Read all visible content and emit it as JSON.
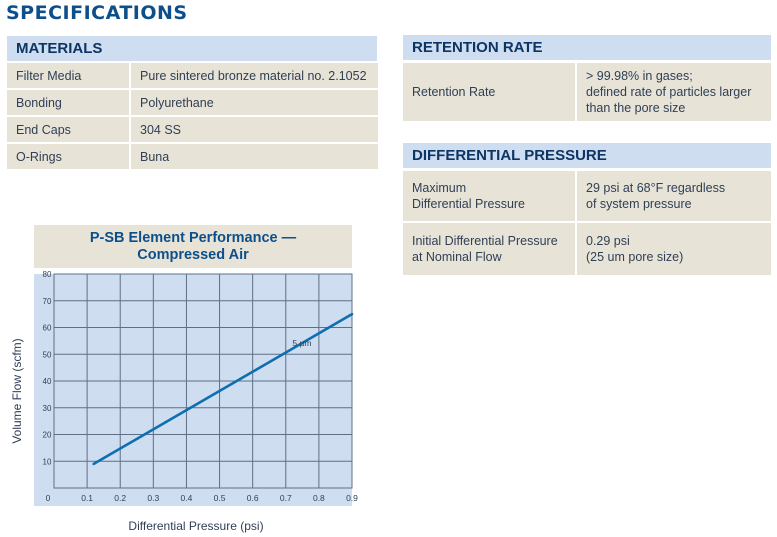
{
  "page_title": "SPECIFICATIONS",
  "materials": {
    "header": "MATERIALS",
    "rows": [
      {
        "label": "Filter Media",
        "value": "Pure sintered bronze material no. 2.1052"
      },
      {
        "label": "Bonding",
        "value": "Polyurethane"
      },
      {
        "label": "End Caps",
        "value": "304 SS"
      },
      {
        "label": "O-Rings",
        "value": "Buna"
      }
    ]
  },
  "retention": {
    "header": "RETENTION RATE",
    "label": "Retention Rate",
    "value_lines": [
      "> 99.98% in gases;",
      "defined rate of particles larger",
      "than the pore size"
    ]
  },
  "differential": {
    "header": "DIFFERENTIAL PRESSURE",
    "rows": [
      {
        "label_lines": [
          "Maximum",
          "Differential Pressure"
        ],
        "value_lines": [
          "29 psi at 68°F regardless",
          "of system pressure"
        ]
      },
      {
        "label_lines": [
          "Initial Differential Pressure",
          "at Nominal Flow"
        ],
        "value_lines": [
          "0.29 psi",
          "(25 um pore size)"
        ]
      }
    ]
  },
  "chart_data": {
    "type": "line",
    "title": [
      "P-SB Element Performance —",
      "Compressed Air"
    ],
    "xlabel": "Differential Pressure (psi)",
    "ylabel": "Volume Flow (scfm)",
    "xlim": [
      0,
      0.9
    ],
    "ylim": [
      0,
      80
    ],
    "xticks": [
      "0",
      "0.1",
      "0.2",
      "0.3",
      "0.4",
      "0.5",
      "0.6",
      "0.7",
      "0.8",
      "0.9"
    ],
    "yticks": [
      "10",
      "20",
      "30",
      "40",
      "50",
      "60",
      "70",
      "80"
    ],
    "grid": true,
    "series": [
      {
        "name": "5 µm",
        "color": "#0d6fb0",
        "x": [
          0.12,
          0.9
        ],
        "y": [
          9,
          65
        ]
      }
    ],
    "annotation": {
      "text": "5 µm",
      "x": 0.72,
      "y": 53
    }
  }
}
